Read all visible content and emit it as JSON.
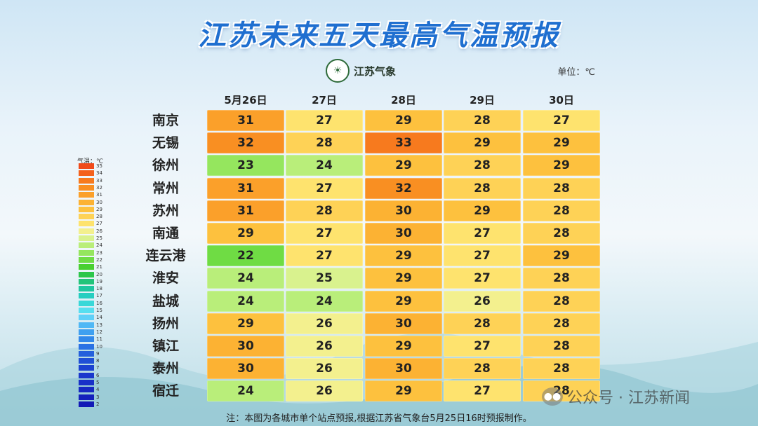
{
  "title": "江苏未来五天最高气温预报",
  "logo": {
    "text": "江苏气象",
    "icon": "meteorological-badge-icon"
  },
  "unit": "单位：℃",
  "chart_data": {
    "type": "heatmap",
    "title": "江苏未来五天最高气温预报",
    "columns": [
      "5月26日",
      "27日",
      "28日",
      "29日",
      "30日"
    ],
    "rows": [
      {
        "city": "南京",
        "values": [
          31,
          27,
          29,
          28,
          27
        ]
      },
      {
        "city": "无锡",
        "values": [
          32,
          28,
          33,
          29,
          29
        ]
      },
      {
        "city": "徐州",
        "values": [
          23,
          24,
          29,
          28,
          29
        ]
      },
      {
        "city": "常州",
        "values": [
          31,
          27,
          32,
          28,
          28
        ]
      },
      {
        "city": "苏州",
        "values": [
          31,
          28,
          30,
          29,
          28
        ]
      },
      {
        "city": "南通",
        "values": [
          29,
          27,
          30,
          27,
          28
        ]
      },
      {
        "city": "连云港",
        "values": [
          22,
          27,
          29,
          27,
          29
        ]
      },
      {
        "city": "淮安",
        "values": [
          24,
          25,
          29,
          27,
          28
        ]
      },
      {
        "city": "盐城",
        "values": [
          24,
          24,
          29,
          26,
          28
        ]
      },
      {
        "city": "扬州",
        "values": [
          29,
          26,
          30,
          28,
          28
        ]
      },
      {
        "city": "镇江",
        "values": [
          30,
          26,
          29,
          27,
          28
        ]
      },
      {
        "city": "泰州",
        "values": [
          30,
          26,
          30,
          28,
          28
        ]
      },
      {
        "city": "宿迁",
        "values": [
          24,
          26,
          29,
          27,
          28
        ]
      }
    ],
    "legend": {
      "label": "气温：℃",
      "levels": [
        {
          "v": "35",
          "c": "#f04a1a"
        },
        {
          "v": "34",
          "c": "#f4611c"
        },
        {
          "v": "33",
          "c": "#f77a1e"
        },
        {
          "v": "32",
          "c": "#f98f22"
        },
        {
          "v": "31",
          "c": "#fba02a"
        },
        {
          "v": "30",
          "c": "#fcb233"
        },
        {
          "v": "29",
          "c": "#fdc13e"
        },
        {
          "v": "28",
          "c": "#fed256"
        },
        {
          "v": "27",
          "c": "#fee36e"
        },
        {
          "v": "26",
          "c": "#f3f08e"
        },
        {
          "v": "25",
          "c": "#d9f28e"
        },
        {
          "v": "24",
          "c": "#b9ee7a"
        },
        {
          "v": "23",
          "c": "#95e65e"
        },
        {
          "v": "22",
          "c": "#6fdc44"
        },
        {
          "v": "21",
          "c": "#48d030"
        },
        {
          "v": "20",
          "c": "#2cc64a"
        },
        {
          "v": "19",
          "c": "#22c47a"
        },
        {
          "v": "18",
          "c": "#1fc7a0"
        },
        {
          "v": "17",
          "c": "#25cec0"
        },
        {
          "v": "16",
          "c": "#38d8d8"
        },
        {
          "v": "15",
          "c": "#56dff0"
        },
        {
          "v": "14",
          "c": "#5fd0f8"
        },
        {
          "v": "13",
          "c": "#4fb8f5"
        },
        {
          "v": "12",
          "c": "#3fa0f0"
        },
        {
          "v": "11",
          "c": "#3288ea"
        },
        {
          "v": "10",
          "c": "#2a72e4"
        },
        {
          "v": "9",
          "c": "#2460dc"
        },
        {
          "v": "8",
          "c": "#2050d6"
        },
        {
          "v": "7",
          "c": "#1c42d0"
        },
        {
          "v": "6",
          "c": "#1a38cc"
        },
        {
          "v": "5",
          "c": "#1830c8"
        },
        {
          "v": "4",
          "c": "#1628c2"
        },
        {
          "v": "3",
          "c": "#1420bc"
        },
        {
          "v": "2",
          "c": "#121ab6"
        }
      ]
    }
  },
  "note": "注：本图为各城市单个站点预报,根据江苏省气象台5月25日16时预报制作。",
  "watermark": "公众号 · 江苏新闻"
}
